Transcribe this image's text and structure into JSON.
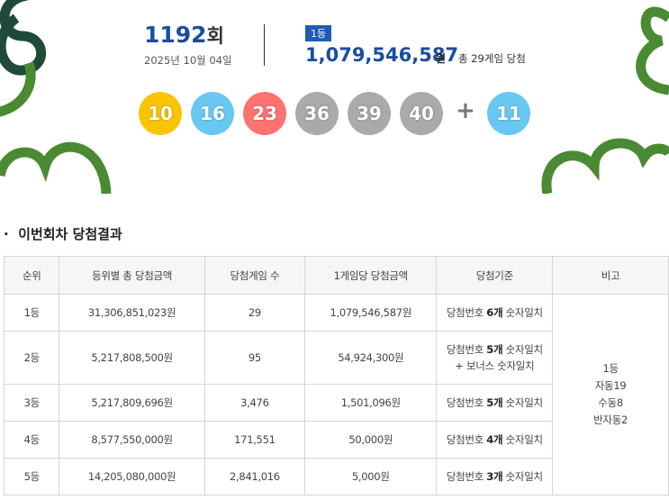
{
  "header": {
    "round_number": "1192",
    "round_suffix": "회",
    "date": "2025년 10월 04일",
    "badge": "1등",
    "prize": "1,079,546,587",
    "prize_unit": "원",
    "winners": "총 29게임 당첨"
  },
  "balls": {
    "numbers": [
      10,
      16,
      23,
      36,
      39,
      40
    ],
    "plus": "+",
    "bonus": 11
  },
  "section": {
    "bullet": "·",
    "title": "이번회차 당첨결과"
  },
  "table": {
    "headers": [
      "순위",
      "등위별 총 당첨금액",
      "당첨게임 수",
      "1게임당 당첨금액",
      "당첨기준",
      "비고"
    ],
    "rows": [
      {
        "rank": "1등",
        "total": "31,306,851,023원",
        "games": "29",
        "per_game": "1,079,546,587원",
        "criteria": {
          "pre": "당첨번호",
          "count": "6개",
          "post": "숫자일치"
        }
      },
      {
        "rank": "2등",
        "total": "5,217,808,500원",
        "games": "95",
        "per_game": "54,924,300원",
        "criteria": {
          "pre": "당첨번호",
          "count": "5개",
          "post": "숫자일치",
          "extra": "+ 보너스 숫자일치"
        }
      },
      {
        "rank": "3등",
        "total": "5,217,809,696원",
        "games": "3,476",
        "per_game": "1,501,096원",
        "criteria": {
          "pre": "당첨번호",
          "count": "5개",
          "post": "숫자일치"
        }
      },
      {
        "rank": "4등",
        "total": "8,577,550,000원",
        "games": "171,551",
        "per_game": "50,000원",
        "criteria": {
          "pre": "당첨번호",
          "count": "4개",
          "post": "숫자일치"
        }
      },
      {
        "rank": "5등",
        "total": "14,205,080,000원",
        "games": "2,841,016",
        "per_game": "5,000원",
        "criteria": {
          "pre": "당첨번호",
          "count": "3개",
          "post": "숫자일치"
        }
      }
    ],
    "note": [
      "1등",
      "자동19",
      "수동8",
      "반자동2"
    ]
  }
}
